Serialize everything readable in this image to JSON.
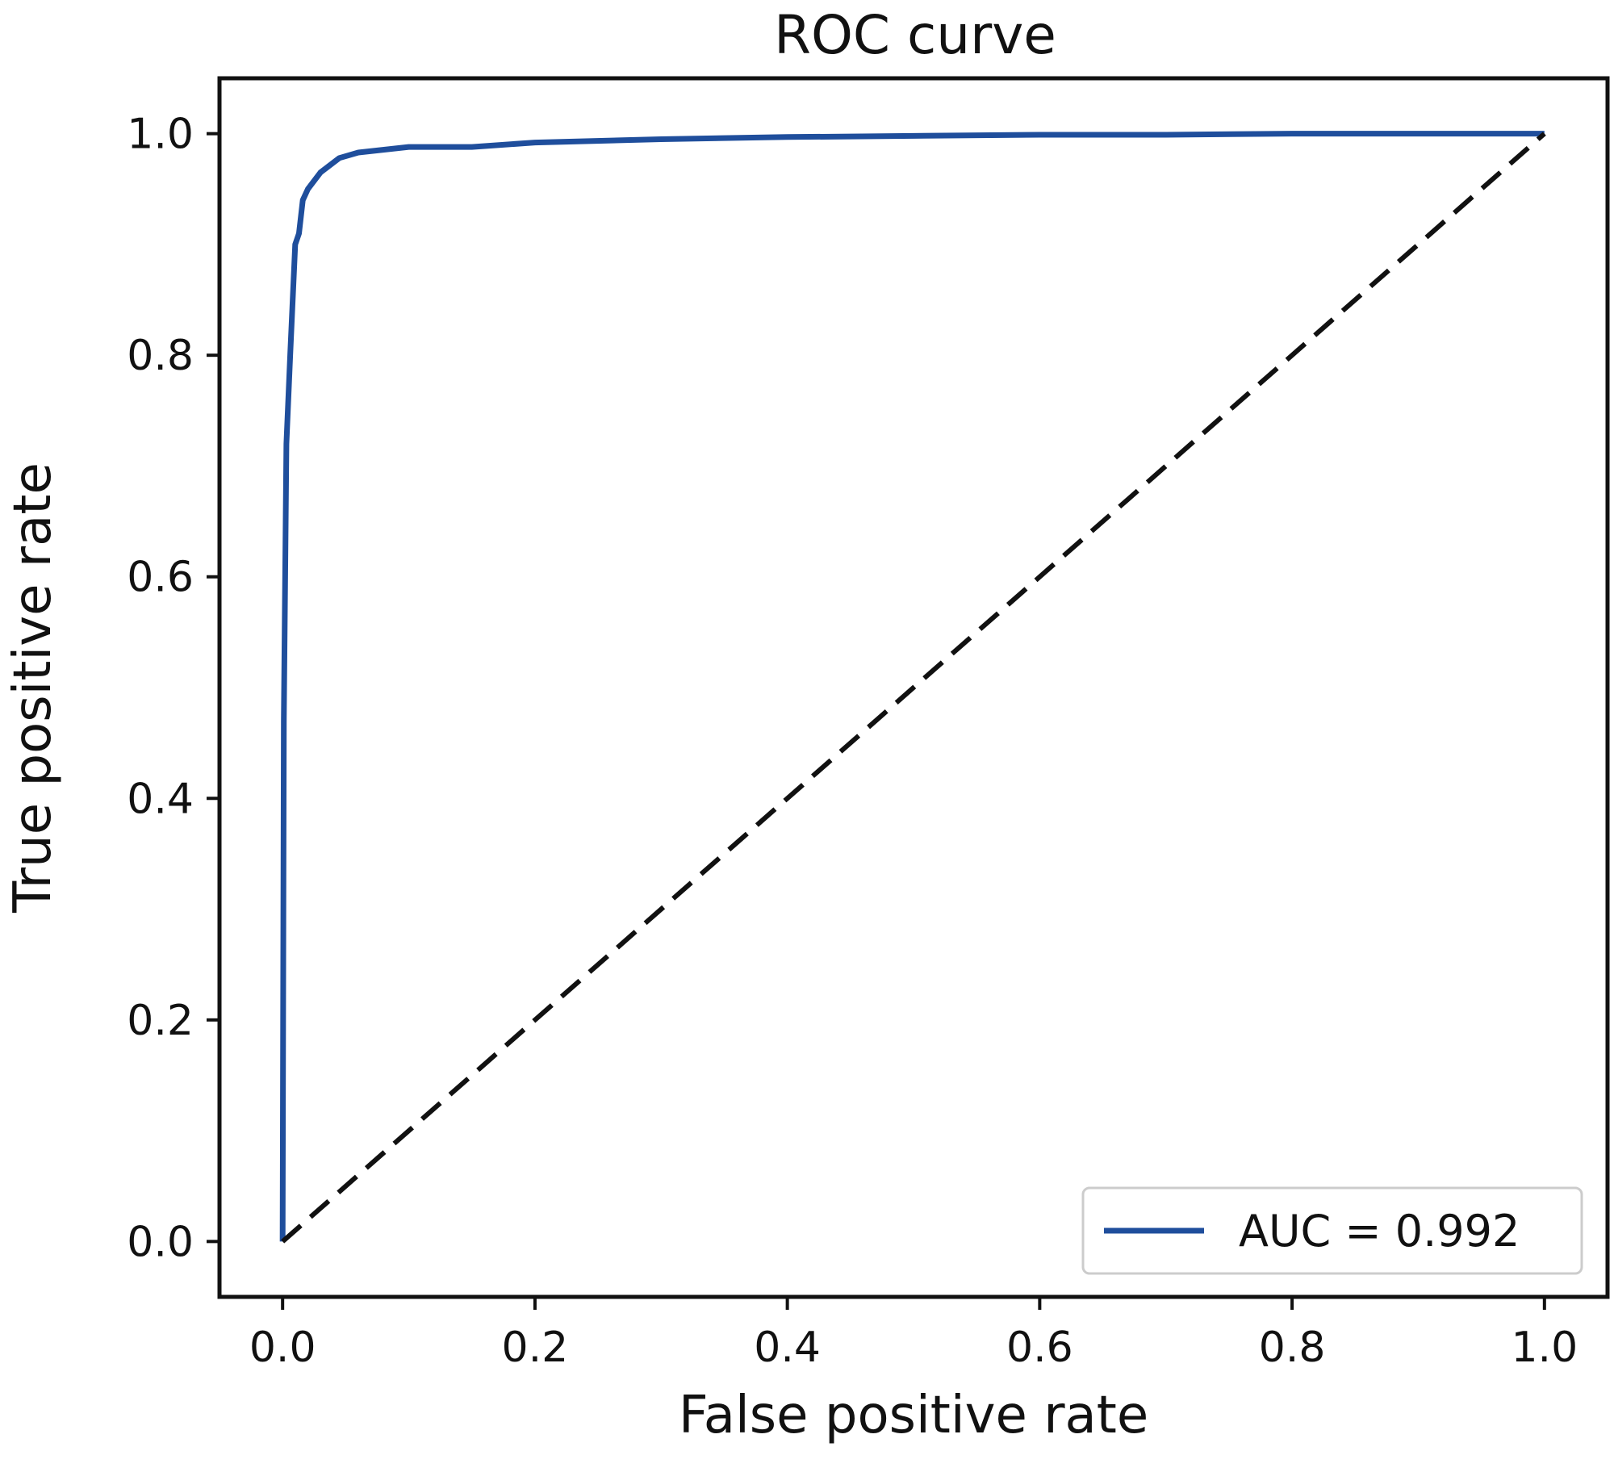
{
  "chart_data": {
    "type": "line",
    "title": "ROC curve",
    "xlabel": "False positive rate",
    "ylabel": "True positive rate",
    "xlim": [
      -0.05,
      1.05
    ],
    "ylim": [
      -0.05,
      1.05
    ],
    "x_ticks": [
      0.0,
      0.2,
      0.4,
      0.6,
      0.8,
      1.0
    ],
    "x_tick_labels": [
      "0.0",
      "0.2",
      "0.4",
      "0.6",
      "0.8",
      "1.0"
    ],
    "y_ticks": [
      0.0,
      0.2,
      0.4,
      0.6,
      0.8,
      1.0
    ],
    "y_tick_labels": [
      "0.0",
      "0.2",
      "0.4",
      "0.6",
      "0.8",
      "1.0"
    ],
    "grid": false,
    "legend_placement": "lower-right",
    "series": [
      {
        "name": "AUC = 0.992",
        "color": "#1f4e9c",
        "line_style": "solid",
        "x": [
          0.0,
          0.001,
          0.003,
          0.006,
          0.01,
          0.013,
          0.016,
          0.02,
          0.03,
          0.045,
          0.06,
          0.1,
          0.15,
          0.2,
          0.3,
          0.4,
          0.5,
          0.6,
          0.7,
          0.8,
          0.9,
          1.0
        ],
        "y": [
          0.0,
          0.47,
          0.72,
          0.8,
          0.9,
          0.91,
          0.94,
          0.95,
          0.965,
          0.978,
          0.983,
          0.988,
          0.988,
          0.992,
          0.995,
          0.997,
          0.998,
          0.999,
          0.999,
          1.0,
          1.0,
          1.0
        ]
      },
      {
        "color": "#111111",
        "line_style": "dashed",
        "x": [
          0.0,
          1.0
        ],
        "y": [
          0.0,
          1.0
        ]
      }
    ]
  }
}
